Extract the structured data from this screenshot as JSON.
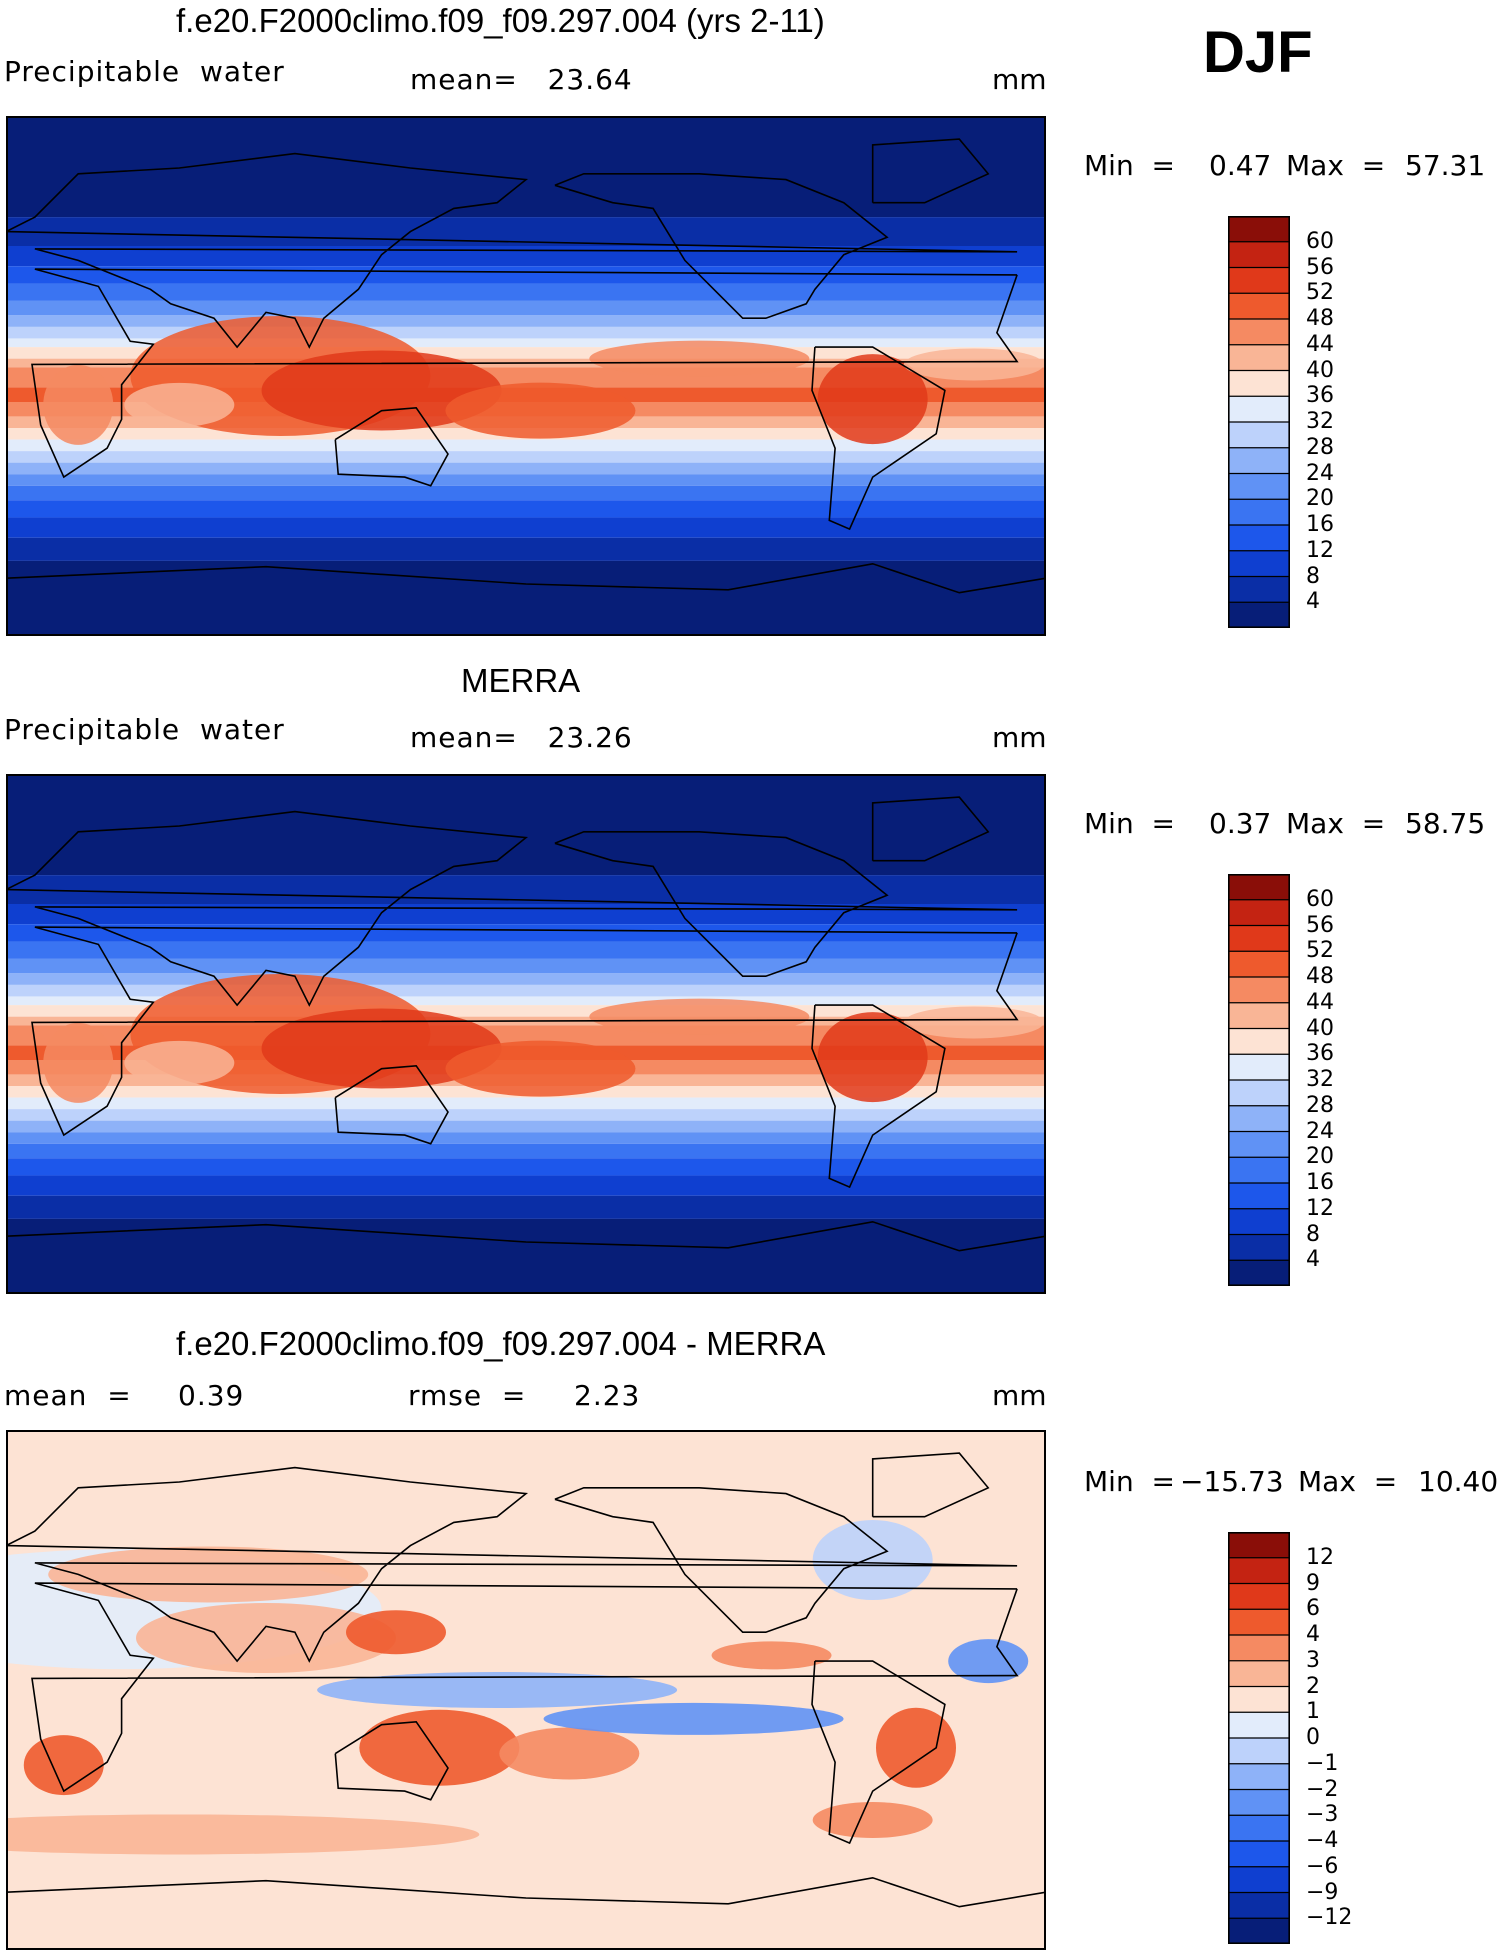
{
  "season": "DJF",
  "panels": [
    {
      "title": "f.e20.F2000climo.f09_f09.297.004 (yrs 2-11)",
      "left_label": "Precipitable  water",
      "center_label": "mean=   23.64",
      "units": "mm",
      "min_label": "Min  =",
      "min_value": "0.47",
      "max_label": "Max  =",
      "max_value": "57.31",
      "colorbar_ticks": [
        "60",
        "56",
        "52",
        "48",
        "44",
        "40",
        "36",
        "32",
        "28",
        "24",
        "20",
        "16",
        "12",
        "8",
        "4"
      ]
    },
    {
      "title": "MERRA",
      "left_label": "Precipitable  water",
      "center_label": "mean=   23.26",
      "units": "mm",
      "min_label": "Min  =",
      "min_value": "0.37",
      "max_label": "Max  =",
      "max_value": "58.75",
      "colorbar_ticks": [
        "60",
        "56",
        "52",
        "48",
        "44",
        "40",
        "36",
        "32",
        "28",
        "24",
        "20",
        "16",
        "12",
        "8",
        "4"
      ]
    },
    {
      "title": "f.e20.F2000climo.f09_f09.297.004 - MERRA",
      "left_label": "mean  =",
      "left_value": "0.39",
      "center_label": "rmse  =",
      "center_value": "2.23",
      "units": "mm",
      "min_label": "Min  =",
      "min_value": "−15.73",
      "max_label": "Max  =",
      "max_value": "10.40",
      "colorbar_ticks": [
        "12",
        "9",
        "6",
        "4",
        "3",
        "2",
        "1",
        "0",
        "−1",
        "−2",
        "−3",
        "−4",
        "−6",
        "−9",
        "−12"
      ]
    }
  ],
  "chart_data": [
    {
      "type": "heatmap",
      "title": "f.e20.F2000climo.f09_f09.297.004 (yrs 2-11)",
      "variable": "Precipitable water",
      "units": "mm",
      "mean": 23.64,
      "min": 0.47,
      "max": 57.31,
      "levels": [
        4,
        8,
        12,
        16,
        20,
        24,
        28,
        32,
        36,
        40,
        44,
        48,
        52,
        56,
        60
      ],
      "colors": [
        "#071e78",
        "#0a2ea6",
        "#0f3fd0",
        "#1d57eb",
        "#3a74f2",
        "#6092f5",
        "#8eb2f8",
        "#bdd2fb",
        "#e2ecfb",
        "#fde3d4",
        "#f9b596",
        "#f58a62",
        "#ee5a2d",
        "#e0391a",
        "#c42312",
        "#8a0e08"
      ]
    },
    {
      "type": "heatmap",
      "title": "MERRA",
      "variable": "Precipitable water",
      "units": "mm",
      "mean": 23.26,
      "min": 0.37,
      "max": 58.75,
      "levels": [
        4,
        8,
        12,
        16,
        20,
        24,
        28,
        32,
        36,
        40,
        44,
        48,
        52,
        56,
        60
      ],
      "colors": [
        "#071e78",
        "#0a2ea6",
        "#0f3fd0",
        "#1d57eb",
        "#3a74f2",
        "#6092f5",
        "#8eb2f8",
        "#bdd2fb",
        "#e2ecfb",
        "#fde3d4",
        "#f9b596",
        "#f58a62",
        "#ee5a2d",
        "#e0391a",
        "#c42312",
        "#8a0e08"
      ]
    },
    {
      "type": "heatmap",
      "title": "f.e20.F2000climo.f09_f09.297.004 - MERRA",
      "units": "mm",
      "mean": 0.39,
      "rmse": 2.23,
      "min": -15.73,
      "max": 10.4,
      "levels": [
        -12,
        -9,
        -6,
        -4,
        -3,
        -2,
        -1,
        0,
        1,
        2,
        3,
        4,
        6,
        9,
        12
      ],
      "colors": [
        "#071e78",
        "#0a2ea6",
        "#0f3fd0",
        "#1d57eb",
        "#3a74f2",
        "#6092f5",
        "#8eb2f8",
        "#bdd2fb",
        "#e2ecfb",
        "#fde3d4",
        "#f9b596",
        "#f58a62",
        "#ee5a2d",
        "#e0391a",
        "#c42312",
        "#8a0e08"
      ]
    }
  ]
}
